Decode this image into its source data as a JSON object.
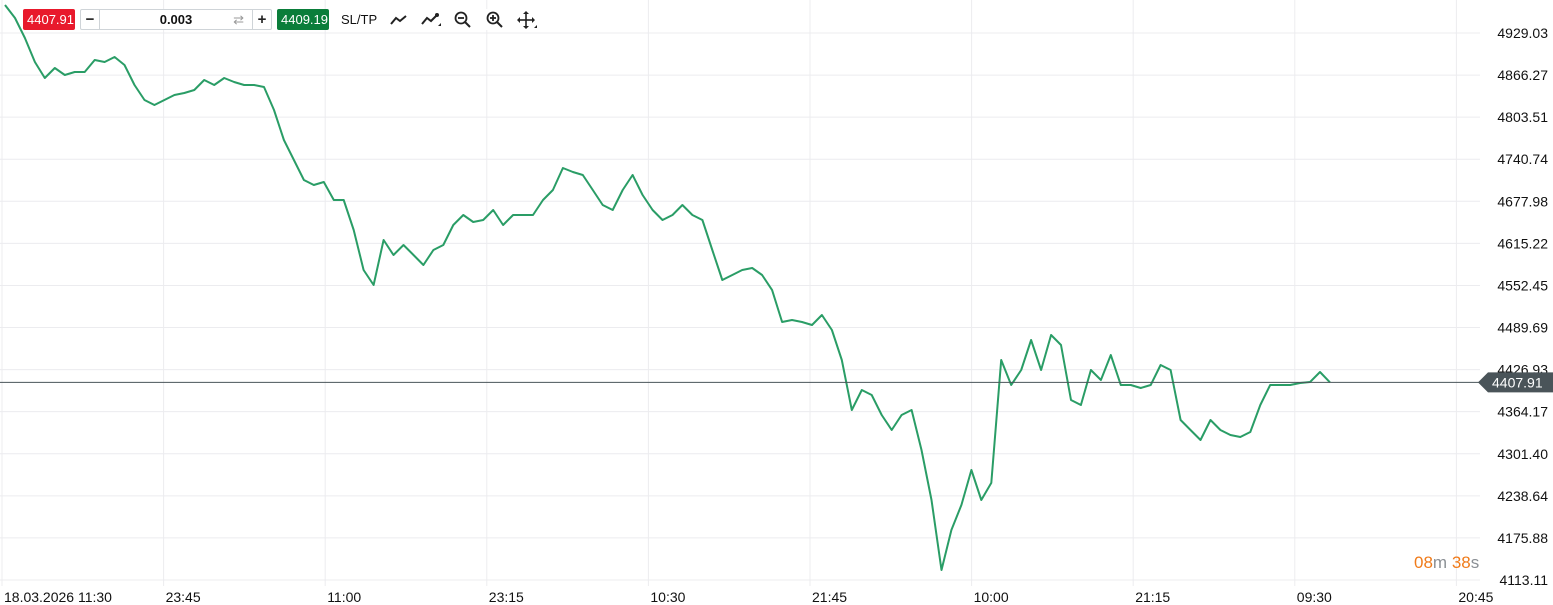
{
  "toolbar": {
    "sell_price": "4407.91",
    "quantity": "0.003",
    "minus_label": "−",
    "plus_label": "+",
    "swap_icon": "swap-arrows-icon",
    "buy_price": "4409.19",
    "sltp_label": "SL/TP",
    "tools": [
      "line-chart-icon",
      "drawing-trend-icon",
      "zoom-out-icon",
      "zoom-in-icon",
      "move-crosshair-icon"
    ],
    "sell_color": "#e8192c",
    "buy_color": "#0a7d3a"
  },
  "countdown": {
    "minutes": "08",
    "minutes_unit": "m",
    "seconds": "38",
    "seconds_unit": "s",
    "color": "#f07b1a"
  },
  "chart_data": {
    "type": "line",
    "line_color": "#2a9d66",
    "grid": true,
    "y_axis_position": "right",
    "ylim": [
      4113.11,
      4929.03
    ],
    "y_ticks": [
      "4929.03",
      "4866.27",
      "4803.51",
      "4740.74",
      "4677.98",
      "4615.22",
      "4552.45",
      "4489.69",
      "4426.93",
      "4364.17",
      "4301.40",
      "4238.64",
      "4175.88",
      "4113.11"
    ],
    "x_ticks": [
      "18.03.2026 11:30",
      "23:45",
      "11:00",
      "23:15",
      "10:30",
      "21:45",
      "10:00",
      "21:15",
      "09:30",
      "20:45"
    ],
    "current_price": "4407.91",
    "current_price_color": "#4a5459",
    "values": [
      4970.8,
      4951.4,
      4921.6,
      4885.8,
      4861.9,
      4876.8,
      4866.4,
      4870.9,
      4870.9,
      4888.8,
      4885.8,
      4893.2,
      4881.3,
      4851.5,
      4829.1,
      4821.6,
      4829.1,
      4836.6,
      4839.5,
      4844.0,
      4858.9,
      4851.5,
      4861.9,
      4856.0,
      4851.5,
      4851.5,
      4848.5,
      4814.2,
      4769.4,
      4739.6,
      4709.7,
      4702.3,
      4706.8,
      4679.9,
      4679.9,
      4635.2,
      4575.5,
      4553.1,
      4620.2,
      4597.9,
      4612.8,
      4597.9,
      4583.0,
      4605.3,
      4612.8,
      4642.6,
      4657.6,
      4647.1,
      4650.1,
      4665.0,
      4642.6,
      4657.6,
      4657.6,
      4657.6,
      4679.9,
      4694.8,
      4727.7,
      4721.7,
      4717.2,
      4694.8,
      4672.5,
      4665.0,
      4694.8,
      4717.2,
      4687.4,
      4665.0,
      4650.1,
      4657.6,
      4672.5,
      4657.6,
      4650.1,
      4605.3,
      4560.6,
      4568.0,
      4575.5,
      4578.5,
      4568.0,
      4545.6,
      4498.0,
      4500.9,
      4498.0,
      4493.5,
      4508.4,
      4486.0,
      4441.3,
      4366.7,
      4396.5,
      4389.0,
      4359.2,
      4336.8,
      4359.2,
      4366.7,
      4307.0,
      4232.4,
      4128.1,
      4187.7,
      4225.0,
      4277.2,
      4232.4,
      4257.9,
      4441.3,
      4404.0,
      4426.4,
      4471.1,
      4426.4,
      4478.5,
      4463.6,
      4381.6,
      4374.1,
      4426.4,
      4411.4,
      4448.7,
      4404.0,
      4404.0,
      4399.5,
      4404.0,
      4433.8,
      4426.4,
      4351.7,
      4336.8,
      4321.9,
      4351.7,
      4336.8,
      4329.4,
      4326.4,
      4333.8,
      4374.1,
      4404.0,
      4404.0,
      4404.0,
      4406.9,
      4408.4,
      4423.4,
      4407.91
    ]
  }
}
